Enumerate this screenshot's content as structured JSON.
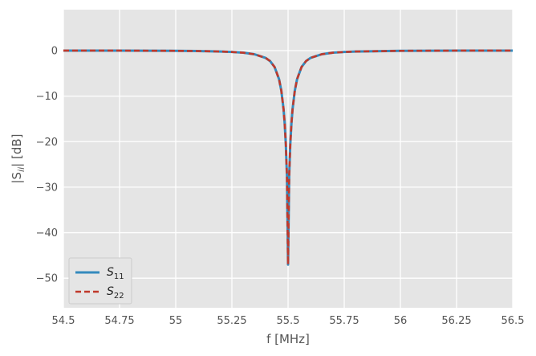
{
  "chart_data": {
    "type": "line",
    "title": "",
    "xlabel": "f [MHz]",
    "ylabel": "|S_ii| [dB]",
    "ylabel_main": "|S",
    "ylabel_sub": "ii",
    "ylabel_tail": "| [dB]",
    "xlim": [
      54.5,
      56.5
    ],
    "ylim": [
      -56.5,
      9
    ],
    "xticks": [
      54.5,
      54.75,
      55,
      55.25,
      55.5,
      55.75,
      56,
      56.25,
      56.5
    ],
    "xtick_labels": [
      "54.5",
      "54.75",
      "55",
      "55.25",
      "55.5",
      "55.75",
      "56",
      "56.25",
      "56.5"
    ],
    "yticks": [
      0,
      -10,
      -20,
      -30,
      -40,
      -50
    ],
    "ytick_labels": [
      "0",
      "−10",
      "−20",
      "−30",
      "−40",
      "−50"
    ],
    "grid": true,
    "legend_position": "lower-left",
    "series": [
      {
        "name": "S11",
        "label_main": "S",
        "label_sub": "11",
        "color": "#348ABD",
        "style": "solid",
        "x": [
          54.5,
          54.75,
          55.0,
          55.1,
          55.2,
          55.25,
          55.3,
          55.35,
          55.4,
          55.42,
          55.44,
          55.46,
          55.47,
          55.48,
          55.485,
          55.49,
          55.495,
          55.5,
          55.505,
          55.51,
          55.515,
          55.52,
          55.53,
          55.54,
          55.56,
          55.58,
          55.6,
          55.65,
          55.7,
          55.75,
          55.8,
          56.0,
          56.25,
          56.5
        ],
        "y": [
          0.0,
          0.0,
          -0.05,
          -0.1,
          -0.2,
          -0.3,
          -0.45,
          -0.8,
          -1.6,
          -2.3,
          -3.6,
          -6.3,
          -8.8,
          -12.9,
          -16.0,
          -20.5,
          -27.5,
          -47.0,
          -27.5,
          -20.5,
          -16.0,
          -12.9,
          -8.8,
          -6.3,
          -3.6,
          -2.3,
          -1.6,
          -0.8,
          -0.45,
          -0.3,
          -0.2,
          -0.05,
          0.0,
          0.0
        ]
      },
      {
        "name": "S22",
        "label_main": "S",
        "label_sub": "22",
        "color": "#C0392B",
        "style": "dashed",
        "x": [
          54.5,
          54.75,
          55.0,
          55.1,
          55.2,
          55.25,
          55.3,
          55.35,
          55.4,
          55.42,
          55.44,
          55.46,
          55.47,
          55.48,
          55.485,
          55.49,
          55.495,
          55.5,
          55.505,
          55.51,
          55.515,
          55.52,
          55.53,
          55.54,
          55.56,
          55.58,
          55.6,
          55.65,
          55.7,
          55.75,
          55.8,
          56.0,
          56.25,
          56.5
        ],
        "y": [
          0.0,
          0.0,
          -0.05,
          -0.1,
          -0.2,
          -0.3,
          -0.45,
          -0.8,
          -1.6,
          -2.3,
          -3.6,
          -6.3,
          -8.8,
          -12.9,
          -16.0,
          -20.5,
          -27.5,
          -47.0,
          -27.5,
          -20.5,
          -16.0,
          -12.9,
          -8.8,
          -6.3,
          -3.6,
          -2.3,
          -1.6,
          -0.8,
          -0.45,
          -0.3,
          -0.2,
          -0.05,
          0.0,
          0.0
        ]
      }
    ]
  }
}
